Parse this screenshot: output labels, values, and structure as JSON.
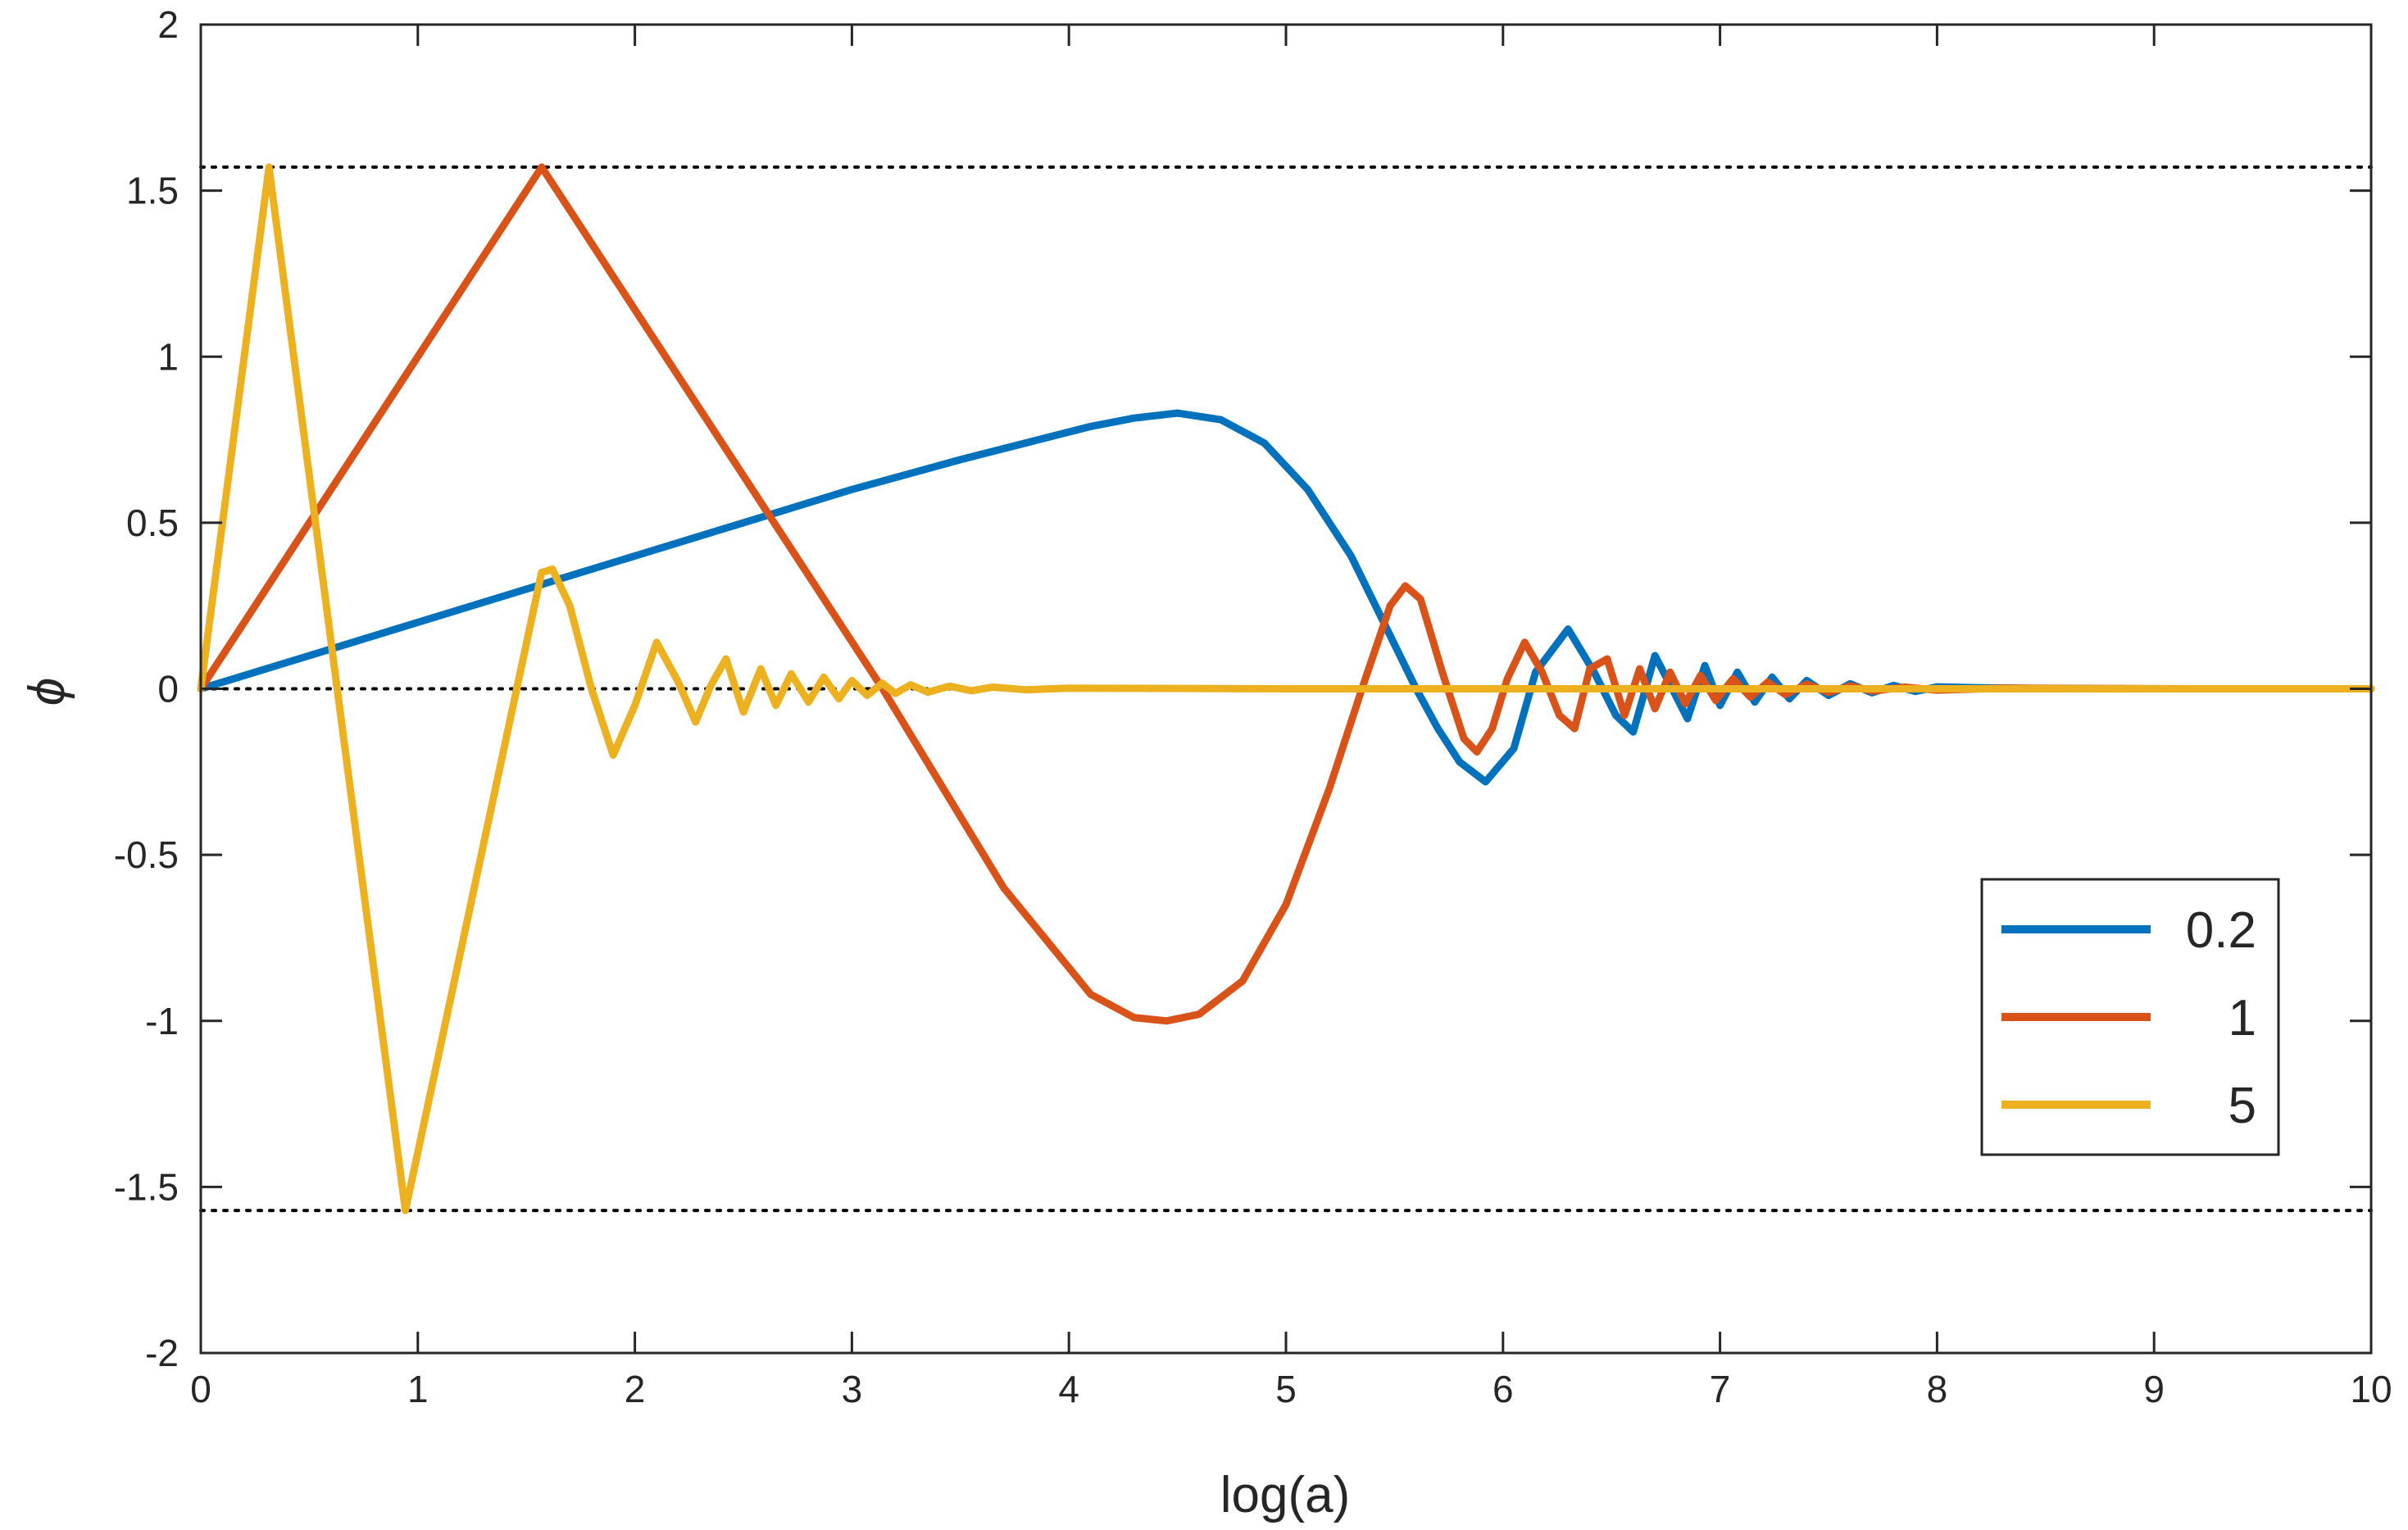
{
  "chart_data": {
    "type": "line",
    "title": "",
    "xlabel": "log(a)",
    "ylabel": "ϕ",
    "xlim": [
      0,
      10
    ],
    "ylim": [
      -2,
      2
    ],
    "x_ticks": [
      0,
      1,
      2,
      3,
      4,
      5,
      6,
      7,
      8,
      9,
      10
    ],
    "x_tick_labels": [
      "0",
      "1",
      "2",
      "3",
      "4",
      "5",
      "6",
      "7",
      "8",
      "9",
      "10"
    ],
    "y_ticks": [
      -2,
      -1.5,
      -1,
      -0.5,
      0,
      0.5,
      1,
      1.5,
      2
    ],
    "y_tick_labels": [
      "-2",
      "-1.5",
      "-1",
      "-0.5",
      "0",
      "0.5",
      "1",
      "1.5",
      "2"
    ],
    "grid": false,
    "legend_position": "bottom-right",
    "reference_lines": [
      {
        "y": 1.5708,
        "style": "dotted",
        "color": "#000000"
      },
      {
        "y": 0,
        "style": "dotted",
        "color": "#000000"
      },
      {
        "y": -1.5708,
        "style": "dotted",
        "color": "#000000"
      }
    ],
    "series": [
      {
        "name": "0.2",
        "color": "#0072BD",
        "x": [
          0,
          0.5,
          1,
          1.5,
          2,
          2.5,
          3,
          3.5,
          3.8,
          4.1,
          4.3,
          4.5,
          4.7,
          4.9,
          5.1,
          5.3,
          5.45,
          5.6,
          5.7,
          5.8,
          5.92,
          6.05,
          6.15,
          6.3,
          6.42,
          6.52,
          6.6,
          6.7,
          6.78,
          6.85,
          6.93,
          7.0,
          7.08,
          7.16,
          7.24,
          7.32,
          7.4,
          7.5,
          7.6,
          7.7,
          7.8,
          7.9,
          8.0,
          8.2,
          8.5,
          9.0,
          10.0
        ],
        "y": [
          0,
          0.1,
          0.2,
          0.3,
          0.4,
          0.5,
          0.6,
          0.69,
          0.74,
          0.79,
          0.815,
          0.83,
          0.81,
          0.74,
          0.6,
          0.4,
          0.2,
          0.0,
          -0.12,
          -0.22,
          -0.28,
          -0.18,
          0.05,
          0.18,
          0.05,
          -0.08,
          -0.13,
          0.1,
          0.0,
          -0.09,
          0.07,
          -0.05,
          0.05,
          -0.04,
          0.035,
          -0.03,
          0.025,
          -0.02,
          0.015,
          -0.012,
          0.01,
          -0.008,
          0.006,
          0.003,
          0.001,
          0,
          0
        ]
      },
      {
        "name": "1",
        "color": "#D95319",
        "x": [
          0,
          1.5708,
          3.1416,
          3.7,
          4.1,
          4.3,
          4.45,
          4.6,
          4.8,
          5.0,
          5.2,
          5.35,
          5.48,
          5.55,
          5.62,
          5.72,
          5.82,
          5.88,
          5.95,
          6.02,
          6.1,
          6.18,
          6.26,
          6.33,
          6.4,
          6.48,
          6.56,
          6.63,
          6.7,
          6.77,
          6.84,
          6.91,
          6.98,
          7.06,
          7.14,
          7.22,
          7.3,
          7.4,
          7.5,
          7.6,
          7.7,
          7.85,
          8.0,
          8.3,
          8.7,
          9.2,
          10.0
        ],
        "y": [
          0,
          1.5708,
          0,
          -0.6,
          -0.92,
          -0.99,
          -1.0,
          -0.98,
          -0.88,
          -0.65,
          -0.3,
          0.0,
          0.25,
          0.31,
          0.27,
          0.05,
          -0.15,
          -0.19,
          -0.12,
          0.03,
          0.14,
          0.05,
          -0.08,
          -0.12,
          0.06,
          0.09,
          -0.08,
          0.06,
          -0.06,
          0.05,
          -0.045,
          0.04,
          -0.035,
          0.03,
          -0.025,
          0.02,
          -0.017,
          0.014,
          -0.011,
          0.009,
          -0.007,
          0.005,
          -0.004,
          0.002,
          0.001,
          0,
          0
        ]
      },
      {
        "name": "5",
        "color": "#EDB120",
        "x": [
          0,
          0.31416,
          0.94248,
          1.57,
          1.62,
          1.7,
          1.8,
          1.9,
          2.0,
          2.1,
          2.2,
          2.28,
          2.35,
          2.42,
          2.5,
          2.58,
          2.65,
          2.72,
          2.8,
          2.87,
          2.94,
          3.0,
          3.07,
          3.14,
          3.2,
          3.27,
          3.35,
          3.45,
          3.55,
          3.65,
          3.8,
          4.0,
          4.5,
          5.0,
          6.0,
          8.0,
          10.0
        ],
        "y": [
          0,
          1.5708,
          -1.5708,
          0.35,
          0.36,
          0.25,
          0.0,
          -0.2,
          -0.05,
          0.14,
          0.02,
          -0.1,
          0.01,
          0.09,
          -0.07,
          0.06,
          -0.05,
          0.045,
          -0.04,
          0.035,
          -0.03,
          0.025,
          -0.02,
          0.017,
          -0.014,
          0.012,
          -0.01,
          0.008,
          -0.006,
          0.005,
          -0.003,
          0.002,
          0.001,
          0,
          0,
          0,
          0
        ]
      }
    ]
  }
}
